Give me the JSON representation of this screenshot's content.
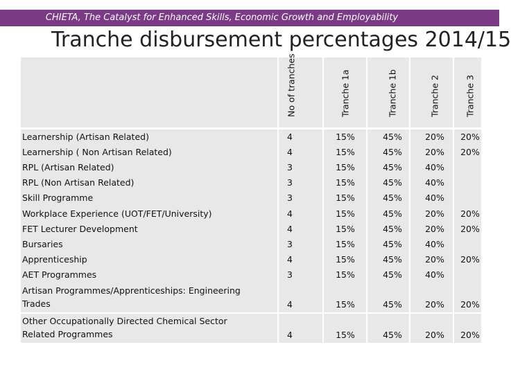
{
  "banner": "CHIETA, The Catalyst for Enhanced Skills, Economic Growth and Employability",
  "title": "Tranche disbursement percentages 2014/15",
  "columns": [
    "No of tranches",
    "Tranche 1a",
    "Tranche 1b",
    "Tranche 2",
    "Tranche 3"
  ],
  "groups": [
    {
      "rows": [
        {
          "label": "Learnership (Artisan Related)",
          "values": [
            "4",
            "15%",
            "45%",
            "20%",
            "20%"
          ]
        },
        {
          "label": "Learnership ( Non Artisan Related)",
          "values": [
            "4",
            "15%",
            "45%",
            "20%",
            "20%"
          ]
        },
        {
          "label": "RPL (Artisan Related)",
          "values": [
            "3",
            "15%",
            "45%",
            "40%",
            ""
          ]
        },
        {
          "label": "RPL (Non Artisan Related)",
          "values": [
            "3",
            "15%",
            "45%",
            "40%",
            ""
          ]
        },
        {
          "label": "Skill Programme",
          "values": [
            "3",
            "15%",
            "45%",
            "40%",
            ""
          ]
        }
      ]
    },
    {
      "rows": [
        {
          "label": "Workplace Experience (UOT/FET/University)",
          "values": [
            "4",
            "15%",
            "45%",
            "20%",
            "20%"
          ]
        },
        {
          "label": "FET Lecturer Development",
          "values": [
            "4",
            "15%",
            "45%",
            "20%",
            "20%"
          ]
        },
        {
          "label": "Bursaries",
          "values": [
            "3",
            "15%",
            "45%",
            "40%",
            ""
          ]
        },
        {
          "label": "Apprenticeship",
          "values": [
            "4",
            "15%",
            "45%",
            "20%",
            "20%"
          ]
        },
        {
          "label": "AET Programmes",
          "values": [
            "3",
            "15%",
            "45%",
            "40%",
            ""
          ]
        }
      ]
    },
    {
      "rows": [
        {
          "label": "Artisan Programmes/Apprenticeships: Engineering",
          "label2": "Trades",
          "values": [
            "4",
            "15%",
            "45%",
            "20%",
            "20%"
          ]
        }
      ]
    },
    {
      "rows": [
        {
          "label": "Other Occupationally Directed Chemical Sector",
          "label2": "Related Programmes",
          "values": [
            "4",
            "15%",
            "45%",
            "20%",
            "20%"
          ]
        }
      ]
    }
  ]
}
